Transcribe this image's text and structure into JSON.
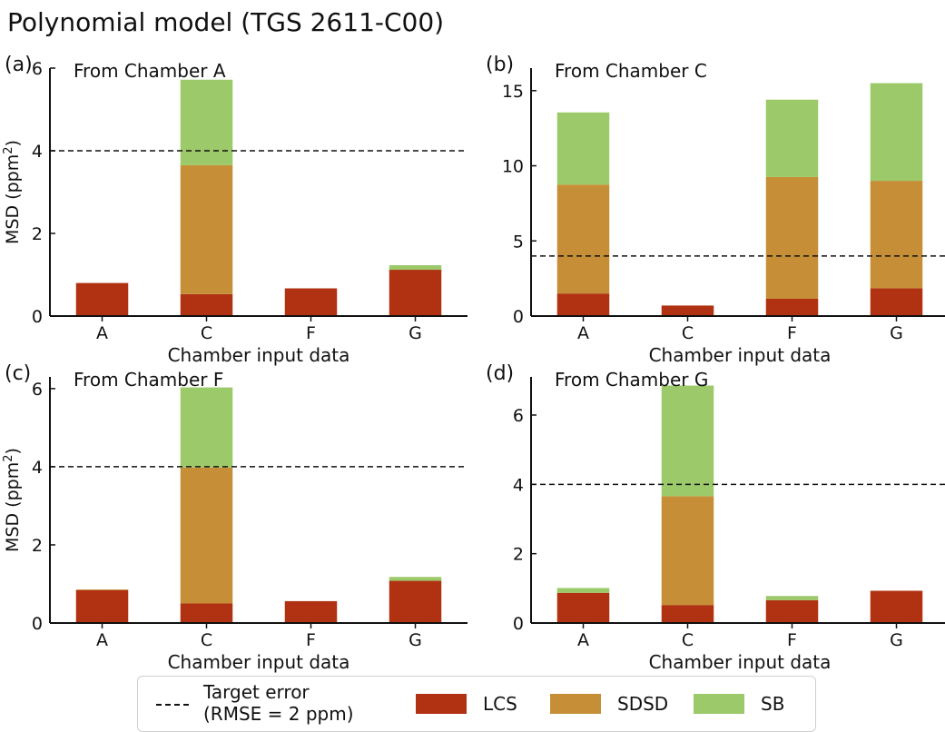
{
  "figure": {
    "title": "Polynomial model (TGS 2611-C00)"
  },
  "legend": {
    "target_line1": "Target error",
    "target_line2": "(RMSE = 2 ppm)",
    "items": [
      {
        "name": "LCS",
        "color": "#b03212"
      },
      {
        "name": "SDSD",
        "color": "#c68f37"
      },
      {
        "name": "SB",
        "color": "#9cc969"
      }
    ]
  },
  "chart_data": [
    {
      "type": "bar",
      "stacked": true,
      "panel_label": "(a)",
      "annotation": "From Chamber A",
      "categories": [
        "A",
        "C",
        "F",
        "G"
      ],
      "series": [
        {
          "name": "LCS",
          "values": [
            0.8,
            0.53,
            0.67,
            1.12
          ]
        },
        {
          "name": "SDSD",
          "values": [
            0.0,
            3.12,
            0.0,
            0.0
          ]
        },
        {
          "name": "SB",
          "values": [
            0.0,
            2.07,
            0.0,
            0.11
          ]
        }
      ],
      "target": 4,
      "ylim": [
        0,
        6
      ],
      "yticks": [
        0,
        2,
        4,
        6
      ],
      "xlabel": "Chamber input data",
      "ylabel": "MSD (ppm²)"
    },
    {
      "type": "bar",
      "stacked": true,
      "panel_label": "(b)",
      "annotation": "From Chamber C",
      "categories": [
        "A",
        "C",
        "F",
        "G"
      ],
      "series": [
        {
          "name": "LCS",
          "values": [
            1.5,
            0.7,
            1.15,
            1.85
          ]
        },
        {
          "name": "SDSD",
          "values": [
            7.25,
            0.0,
            8.1,
            7.15
          ]
        },
        {
          "name": "SB",
          "values": [
            4.8,
            0.0,
            5.15,
            6.5
          ]
        }
      ],
      "target": 4,
      "ylim": [
        0,
        16.5
      ],
      "yticks": [
        0,
        5,
        10,
        15
      ],
      "xlabel": "Chamber input data",
      "ylabel": ""
    },
    {
      "type": "bar",
      "stacked": true,
      "panel_label": "(c)",
      "annotation": "From Chamber F",
      "categories": [
        "A",
        "C",
        "F",
        "G"
      ],
      "series": [
        {
          "name": "LCS",
          "values": [
            0.84,
            0.5,
            0.56,
            1.08
          ]
        },
        {
          "name": "SDSD",
          "values": [
            0.02,
            3.48,
            0.0,
            0.0
          ]
        },
        {
          "name": "SB",
          "values": [
            0.0,
            2.05,
            0.0,
            0.1
          ]
        }
      ],
      "target": 4,
      "ylim": [
        0,
        6.3
      ],
      "yticks": [
        0,
        2,
        4,
        6
      ],
      "xlabel": "Chamber input data",
      "ylabel": "MSD (ppm²)"
    },
    {
      "type": "bar",
      "stacked": true,
      "panel_label": "(d)",
      "annotation": "From Chamber G",
      "categories": [
        "A",
        "C",
        "F",
        "G"
      ],
      "series": [
        {
          "name": "LCS",
          "values": [
            0.87,
            0.52,
            0.66,
            0.93
          ]
        },
        {
          "name": "SDSD",
          "values": [
            0.0,
            3.14,
            0.0,
            0.0
          ]
        },
        {
          "name": "SB",
          "values": [
            0.14,
            3.19,
            0.12,
            0.0
          ]
        }
      ],
      "target": 4,
      "ylim": [
        0,
        7.1
      ],
      "yticks": [
        0,
        2,
        4,
        6
      ],
      "xlabel": "Chamber input data",
      "ylabel": ""
    }
  ]
}
